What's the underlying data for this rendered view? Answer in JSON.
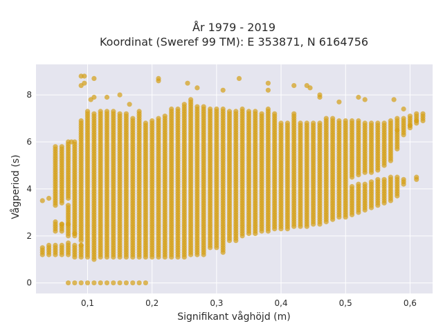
{
  "chart_data": {
    "type": "scatter",
    "title_line1": "År 1979 - 2019",
    "title_line2": "Koordinat (Sweref 99 TM): E 353871, N 6164756",
    "xlabel": "Signifikant våghöjd (m)",
    "ylabel": "Vågperiod (s)",
    "xlim": [
      0.02,
      0.635
    ],
    "ylim": [
      -0.45,
      9.3
    ],
    "x_ticks": [
      0.1,
      0.2,
      0.3,
      0.4,
      0.5,
      0.6
    ],
    "x_tick_labels": [
      "0,1",
      "0,2",
      "0,3",
      "0,4",
      "0,5",
      "0,6"
    ],
    "y_ticks": [
      0,
      2,
      4,
      6,
      8
    ],
    "y_tick_labels": [
      "0",
      "2",
      "4",
      "6",
      "8"
    ],
    "marker_color": "#d4a017",
    "marker_opacity": 0.7,
    "plot_bg": "#e5e5ef",
    "grid": true,
    "column_step": 0.01,
    "y_step": 0.1,
    "columns": [
      {
        "x": 0.03,
        "ranges": [
          [
            1.2,
            1.5
          ],
          [
            3.5,
            3.5
          ]
        ]
      },
      {
        "x": 0.04,
        "ranges": [
          [
            1.2,
            1.6
          ],
          [
            3.6,
            3.6
          ]
        ]
      },
      {
        "x": 0.05,
        "ranges": [
          [
            1.2,
            1.6
          ],
          [
            2.2,
            2.6
          ],
          [
            3.3,
            5.8
          ]
        ]
      },
      {
        "x": 0.06,
        "ranges": [
          [
            1.2,
            1.6
          ],
          [
            2.2,
            2.5
          ],
          [
            3.4,
            5.8
          ]
        ]
      },
      {
        "x": 0.07,
        "ranges": [
          [
            0,
            0
          ],
          [
            1.2,
            1.7
          ],
          [
            2.0,
            3.3
          ],
          [
            3.6,
            6.0
          ]
        ]
      },
      {
        "x": 0.08,
        "ranges": [
          [
            0,
            0
          ],
          [
            1.1,
            1.6
          ],
          [
            2.0,
            6.0
          ]
        ]
      },
      {
        "x": 0.09,
        "ranges": [
          [
            0,
            0
          ],
          [
            1.1,
            1.6
          ],
          [
            1.8,
            6.9
          ]
        ]
      },
      {
        "x": 0.1,
        "ranges": [
          [
            0,
            0
          ],
          [
            1.1,
            7.3
          ]
        ]
      },
      {
        "x": 0.11,
        "ranges": [
          [
            0,
            0
          ],
          [
            1.0,
            7.2
          ]
        ]
      },
      {
        "x": 0.12,
        "ranges": [
          [
            0,
            0
          ],
          [
            1.1,
            7.3
          ]
        ]
      },
      {
        "x": 0.13,
        "ranges": [
          [
            0,
            0
          ],
          [
            1.1,
            7.3
          ]
        ]
      },
      {
        "x": 0.14,
        "ranges": [
          [
            0,
            0
          ],
          [
            1.1,
            7.3
          ]
        ]
      },
      {
        "x": 0.15,
        "ranges": [
          [
            0,
            0
          ],
          [
            1.1,
            7.2
          ]
        ]
      },
      {
        "x": 0.16,
        "ranges": [
          [
            0,
            0
          ],
          [
            1.1,
            7.2
          ]
        ]
      },
      {
        "x": 0.17,
        "ranges": [
          [
            0,
            0
          ],
          [
            1.1,
            7.0
          ]
        ]
      },
      {
        "x": 0.18,
        "ranges": [
          [
            0,
            0
          ],
          [
            1.1,
            7.3
          ]
        ]
      },
      {
        "x": 0.19,
        "ranges": [
          [
            0,
            0
          ],
          [
            1.1,
            6.8
          ]
        ]
      },
      {
        "x": 0.2,
        "ranges": [
          [
            1.1,
            6.9
          ]
        ]
      },
      {
        "x": 0.21,
        "ranges": [
          [
            1.1,
            7.0
          ]
        ]
      },
      {
        "x": 0.22,
        "ranges": [
          [
            1.1,
            7.1
          ]
        ]
      },
      {
        "x": 0.23,
        "ranges": [
          [
            1.1,
            7.4
          ]
        ]
      },
      {
        "x": 0.24,
        "ranges": [
          [
            1.1,
            7.4
          ]
        ]
      },
      {
        "x": 0.25,
        "ranges": [
          [
            1.1,
            7.6
          ]
        ]
      },
      {
        "x": 0.26,
        "ranges": [
          [
            1.2,
            7.8
          ]
        ]
      },
      {
        "x": 0.27,
        "ranges": [
          [
            1.2,
            7.5
          ]
        ]
      },
      {
        "x": 0.28,
        "ranges": [
          [
            1.2,
            7.5
          ]
        ]
      },
      {
        "x": 0.29,
        "ranges": [
          [
            1.5,
            7.4
          ]
        ]
      },
      {
        "x": 0.3,
        "ranges": [
          [
            1.5,
            7.4
          ]
        ]
      },
      {
        "x": 0.31,
        "ranges": [
          [
            1.3,
            7.4
          ]
        ]
      },
      {
        "x": 0.32,
        "ranges": [
          [
            1.8,
            7.3
          ]
        ]
      },
      {
        "x": 0.33,
        "ranges": [
          [
            1.8,
            7.3
          ]
        ]
      },
      {
        "x": 0.34,
        "ranges": [
          [
            2.0,
            7.4
          ]
        ]
      },
      {
        "x": 0.35,
        "ranges": [
          [
            2.1,
            7.3
          ]
        ]
      },
      {
        "x": 0.36,
        "ranges": [
          [
            2.1,
            7.3
          ]
        ]
      },
      {
        "x": 0.37,
        "ranges": [
          [
            2.2,
            7.2
          ]
        ]
      },
      {
        "x": 0.38,
        "ranges": [
          [
            2.2,
            7.4
          ]
        ]
      },
      {
        "x": 0.39,
        "ranges": [
          [
            2.3,
            7.2
          ]
        ]
      },
      {
        "x": 0.4,
        "ranges": [
          [
            2.3,
            6.8
          ]
        ]
      },
      {
        "x": 0.41,
        "ranges": [
          [
            2.3,
            6.8
          ]
        ]
      },
      {
        "x": 0.42,
        "ranges": [
          [
            2.4,
            7.2
          ]
        ]
      },
      {
        "x": 0.43,
        "ranges": [
          [
            2.4,
            6.8
          ]
        ]
      },
      {
        "x": 0.44,
        "ranges": [
          [
            2.4,
            6.8
          ]
        ]
      },
      {
        "x": 0.45,
        "ranges": [
          [
            2.5,
            6.8
          ]
        ]
      },
      {
        "x": 0.46,
        "ranges": [
          [
            2.5,
            6.8
          ]
        ]
      },
      {
        "x": 0.47,
        "ranges": [
          [
            2.6,
            7.0
          ]
        ]
      },
      {
        "x": 0.48,
        "ranges": [
          [
            2.7,
            7.0
          ]
        ]
      },
      {
        "x": 0.49,
        "ranges": [
          [
            2.8,
            6.9
          ]
        ]
      },
      {
        "x": 0.5,
        "ranges": [
          [
            2.8,
            6.9
          ]
        ]
      },
      {
        "x": 0.51,
        "ranges": [
          [
            2.9,
            4.1
          ],
          [
            4.5,
            6.9
          ]
        ]
      },
      {
        "x": 0.52,
        "ranges": [
          [
            3.0,
            4.2
          ],
          [
            4.6,
            6.9
          ]
        ]
      },
      {
        "x": 0.53,
        "ranges": [
          [
            3.1,
            4.2
          ],
          [
            4.7,
            6.8
          ]
        ]
      },
      {
        "x": 0.54,
        "ranges": [
          [
            3.2,
            4.3
          ],
          [
            4.7,
            6.8
          ]
        ]
      },
      {
        "x": 0.55,
        "ranges": [
          [
            3.3,
            4.4
          ],
          [
            4.8,
            6.8
          ]
        ]
      },
      {
        "x": 0.56,
        "ranges": [
          [
            3.4,
            4.4
          ],
          [
            5.0,
            6.8
          ]
        ]
      },
      {
        "x": 0.57,
        "ranges": [
          [
            3.5,
            4.5
          ],
          [
            5.2,
            6.9
          ]
        ]
      },
      {
        "x": 0.58,
        "ranges": [
          [
            3.7,
            4.5
          ],
          [
            5.7,
            7.0
          ]
        ]
      },
      {
        "x": 0.59,
        "ranges": [
          [
            4.2,
            4.4
          ],
          [
            6.3,
            7.0
          ]
        ]
      },
      {
        "x": 0.6,
        "ranges": [
          [
            6.6,
            7.1
          ]
        ]
      },
      {
        "x": 0.61,
        "ranges": [
          [
            4.4,
            4.5
          ],
          [
            6.8,
            7.2
          ]
        ]
      },
      {
        "x": 0.62,
        "ranges": [
          [
            6.9,
            7.2
          ]
        ]
      }
    ],
    "outliers": [
      [
        0.09,
        8.8
      ],
      [
        0.09,
        8.4
      ],
      [
        0.095,
        8.8
      ],
      [
        0.095,
        8.5
      ],
      [
        0.11,
        7.9
      ],
      [
        0.11,
        8.7
      ],
      [
        0.105,
        7.8
      ],
      [
        0.13,
        7.9
      ],
      [
        0.15,
        8.0
      ],
      [
        0.165,
        7.6
      ],
      [
        0.21,
        8.6
      ],
      [
        0.21,
        8.7
      ],
      [
        0.255,
        8.5
      ],
      [
        0.27,
        8.3
      ],
      [
        0.31,
        8.2
      ],
      [
        0.335,
        8.7
      ],
      [
        0.38,
        8.5
      ],
      [
        0.38,
        8.2
      ],
      [
        0.42,
        8.4
      ],
      [
        0.44,
        8.4
      ],
      [
        0.445,
        8.3
      ],
      [
        0.46,
        8.0
      ],
      [
        0.46,
        7.9
      ],
      [
        0.49,
        7.7
      ],
      [
        0.52,
        7.9
      ],
      [
        0.53,
        7.8
      ],
      [
        0.575,
        7.8
      ],
      [
        0.59,
        7.4
      ],
      [
        0.58,
        6.5
      ],
      [
        0.6,
        6.7
      ],
      [
        0.61,
        6.9
      ],
      [
        0.07,
        2.5
      ],
      [
        0.06,
        2.5
      ],
      [
        0.08,
        2.1
      ],
      [
        0.09,
        1.6
      ],
      [
        0.075,
        6.0
      ]
    ]
  }
}
